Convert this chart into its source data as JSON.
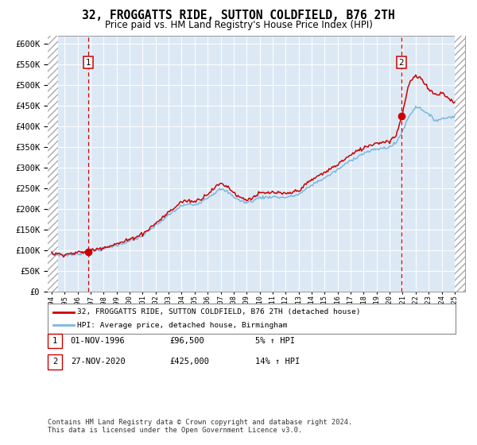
{
  "title": "32, FROGGATTS RIDE, SUTTON COLDFIELD, B76 2TH",
  "subtitle": "Price paid vs. HM Land Registry's House Price Index (HPI)",
  "ylim": [
    0,
    620000
  ],
  "yticks": [
    0,
    50000,
    100000,
    150000,
    200000,
    250000,
    300000,
    350000,
    400000,
    450000,
    500000,
    550000,
    600000
  ],
  "xlim_start": 1993.7,
  "xlim_end": 2025.8,
  "data_start": 1994.0,
  "data_end": 2025.0,
  "hatch_left_end": 1994.5,
  "hatch_right_start": 2025.0,
  "bg_color": "#dce9f5",
  "hpi_color": "#7ab8e0",
  "price_color": "#cc0000",
  "sale1_date_num": 1996.833,
  "sale1_price": 96500,
  "sale2_date_num": 2020.9,
  "sale2_price": 425000,
  "legend_line1": "32, FROGGATTS RIDE, SUTTON COLDFIELD, B76 2TH (detached house)",
  "legend_line2": "HPI: Average price, detached house, Birmingham",
  "table_row1": [
    "1",
    "01-NOV-1996",
    "£96,500",
    "5% ↑ HPI"
  ],
  "table_row2": [
    "2",
    "27-NOV-2020",
    "£425,000",
    "14% ↑ HPI"
  ],
  "footnote": "Contains HM Land Registry data © Crown copyright and database right 2024.\nThis data is licensed under the Open Government Licence v3.0.",
  "hpi_kp": {
    "1994.0": 90000,
    "1994.5": 89000,
    "1995.0": 88000,
    "1995.5": 89500,
    "1996.0": 91000,
    "1996.5": 93500,
    "1997.0": 97000,
    "1997.5": 100500,
    "1998.0": 104000,
    "1998.5": 108000,
    "1999.0": 112000,
    "1999.5": 117000,
    "2000.0": 122000,
    "2000.5": 128000,
    "2001.0": 135000,
    "2001.5": 147000,
    "2002.0": 160000,
    "2002.5": 172000,
    "2003.0": 185000,
    "2003.5": 196000,
    "2004.0": 208000,
    "2004.5": 211000,
    "2005.0": 210000,
    "2005.5": 218000,
    "2006.0": 228000,
    "2006.5": 238000,
    "2007.0": 248000,
    "2007.5": 242000,
    "2008.0": 230000,
    "2008.5": 220000,
    "2009.0": 215000,
    "2009.5": 220000,
    "2010.0": 228000,
    "2010.5": 228000,
    "2011.0": 230000,
    "2011.5": 228000,
    "2012.0": 228000,
    "2012.5": 231000,
    "2013.0": 235000,
    "2013.5": 246000,
    "2014.0": 258000,
    "2014.5": 267000,
    "2015.0": 275000,
    "2015.5": 285000,
    "2016.0": 295000,
    "2016.5": 306000,
    "2017.0": 318000,
    "2017.5": 326000,
    "2018.0": 335000,
    "2018.5": 340000,
    "2019.0": 345000,
    "2019.5": 347000,
    "2020.0": 350000,
    "2020.5": 360000,
    "2021.0": 390000,
    "2021.5": 425000,
    "2022.0": 448000,
    "2022.5": 442000,
    "2023.0": 428000,
    "2023.5": 415000,
    "2024.0": 418000,
    "2024.5": 422000,
    "2025.0": 425000
  },
  "price_kp": {
    "1994.0": 92000,
    "1994.5": 91000,
    "1995.0": 90000,
    "1995.5": 92000,
    "1996.0": 94000,
    "1996.83": 96500,
    "1997.0": 99500,
    "1997.5": 103000,
    "1998.0": 107000,
    "1998.5": 111000,
    "1999.0": 115000,
    "1999.5": 120000,
    "2000.0": 126000,
    "2000.5": 133000,
    "2001.0": 140000,
    "2001.5": 152000,
    "2002.0": 165000,
    "2002.5": 178000,
    "2003.0": 192000,
    "2003.5": 204000,
    "2004.0": 218000,
    "2004.5": 220000,
    "2005.0": 218000,
    "2005.5": 225000,
    "2006.0": 237000,
    "2006.5": 250000,
    "2007.0": 262000,
    "2007.5": 255000,
    "2008.0": 240000,
    "2008.5": 228000,
    "2009.0": 222000,
    "2009.5": 228000,
    "2010.0": 238000,
    "2010.5": 238000,
    "2011.0": 240000,
    "2011.5": 238000,
    "2012.0": 236000,
    "2012.5": 240000,
    "2013.0": 245000,
    "2013.5": 258000,
    "2014.0": 270000,
    "2014.5": 280000,
    "2015.0": 288000,
    "2015.5": 298000,
    "2016.0": 308000,
    "2016.5": 320000,
    "2017.0": 330000,
    "2017.5": 340000,
    "2018.0": 348000,
    "2018.5": 355000,
    "2019.0": 360000,
    "2019.5": 362000,
    "2020.0": 365000,
    "2020.5": 378000,
    "2020.9": 425000,
    "2021.0": 435000,
    "2021.5": 505000,
    "2022.0": 522000,
    "2022.5": 512000,
    "2023.0": 492000,
    "2023.5": 477000,
    "2024.0": 482000,
    "2024.5": 468000,
    "2025.0": 460000
  }
}
